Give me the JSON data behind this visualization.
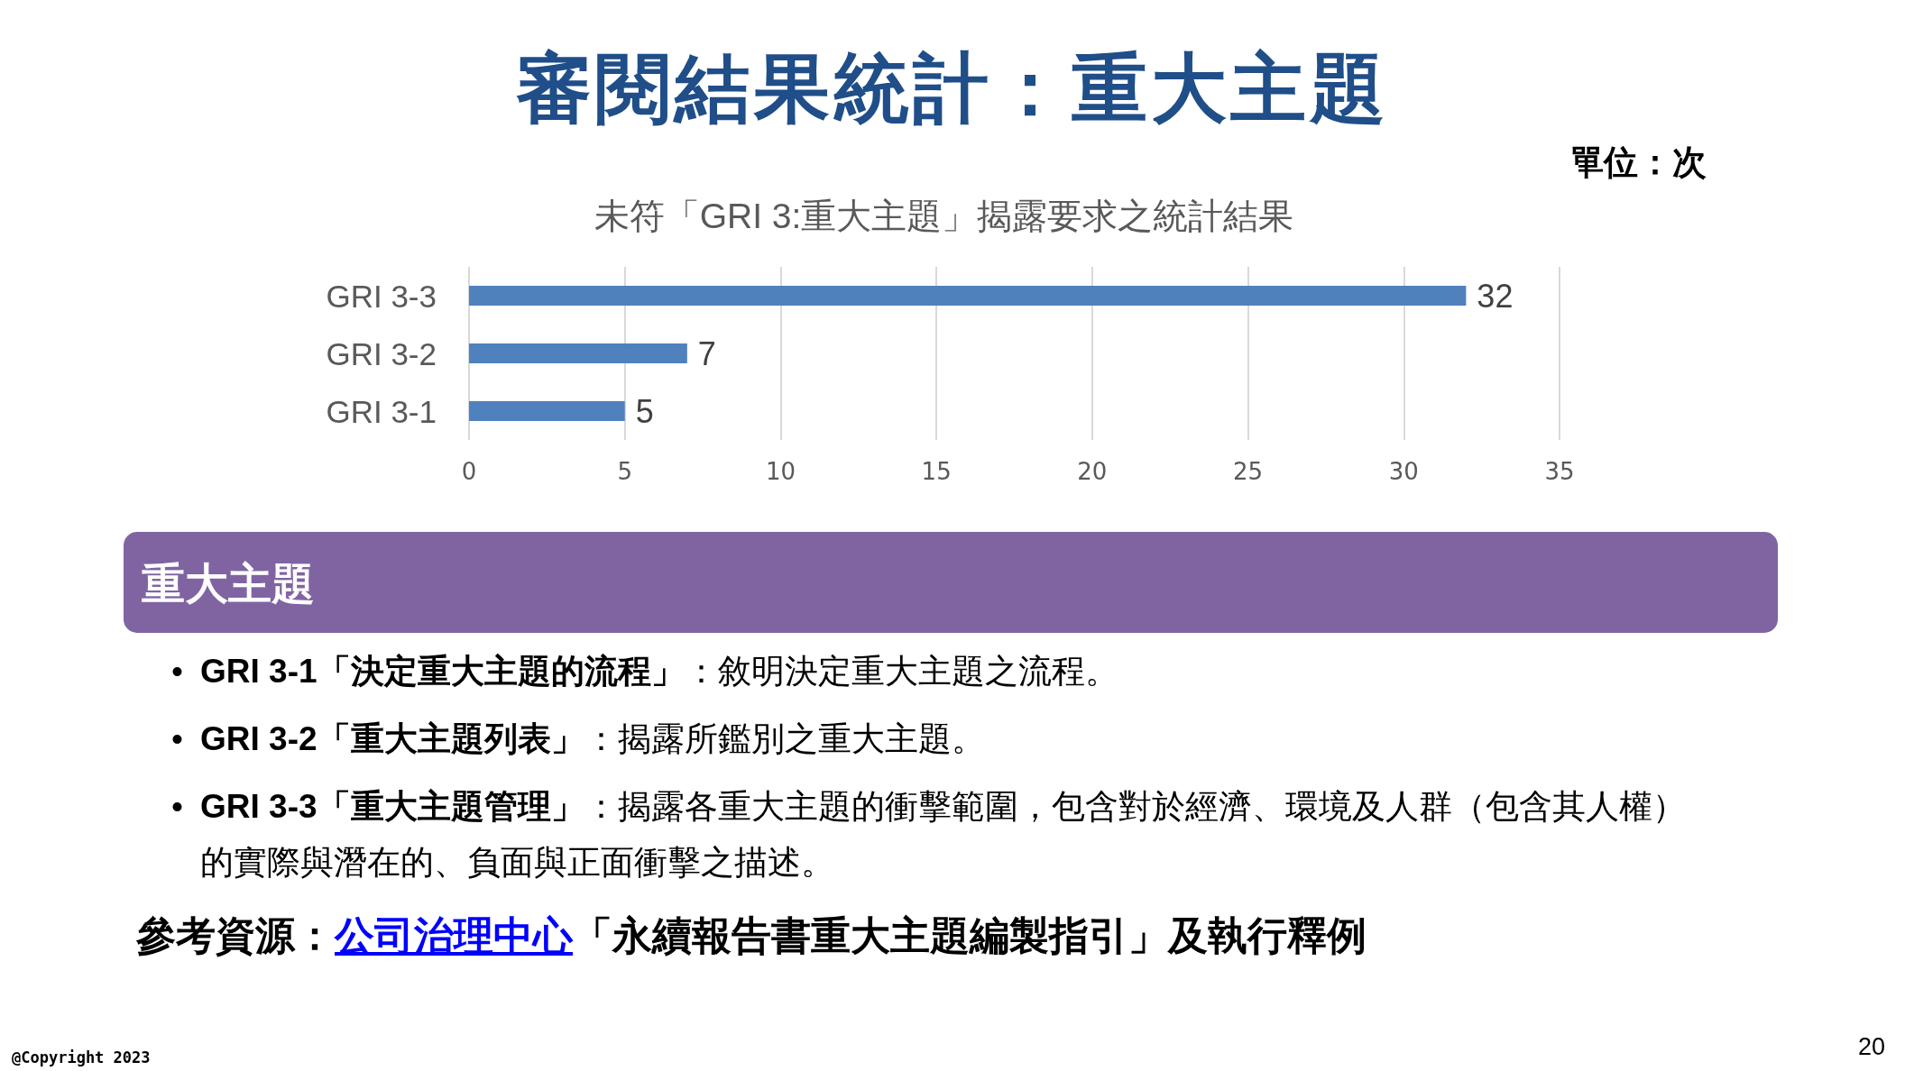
{
  "chart_data": {
    "type": "bar",
    "orientation": "horizontal",
    "title": "審閱結果統計：重大主題",
    "subtitle": "未符「GRI 3:重大主題」揭露要求之統計結果",
    "categories": [
      "GRI 3-3",
      "GRI 3-2",
      "GRI 3-1"
    ],
    "values": [
      32,
      7,
      5
    ],
    "color": "#4f81bd",
    "xlim": [
      0,
      35
    ],
    "xticks": [
      0,
      5,
      10,
      15,
      20,
      25,
      30,
      35
    ],
    "grid": "x",
    "data_labels": true,
    "annotations": [
      "單位：次",
      "重大主題",
      "•",
      "GRI 3-1「決定重大主題的流程」",
      "：敘明決定重大主題之流程。",
      "•",
      "GRI 3-2「重大主題列表」",
      "：揭露所鑑別之重大主題。",
      "•",
      "GRI 3-3「重大主題管理」",
      "：揭露各重大主題的衝擊範圍，包含對於經濟、環境及人群（包含其人權）",
      "的實際與潛在的、負面與正面衝擊之描述。",
      "參考資源：",
      "公司治理中心",
      "「永續報告書重大主題編製指引」及執行釋例",
      "@Copyright 2023",
      "20"
    ]
  }
}
